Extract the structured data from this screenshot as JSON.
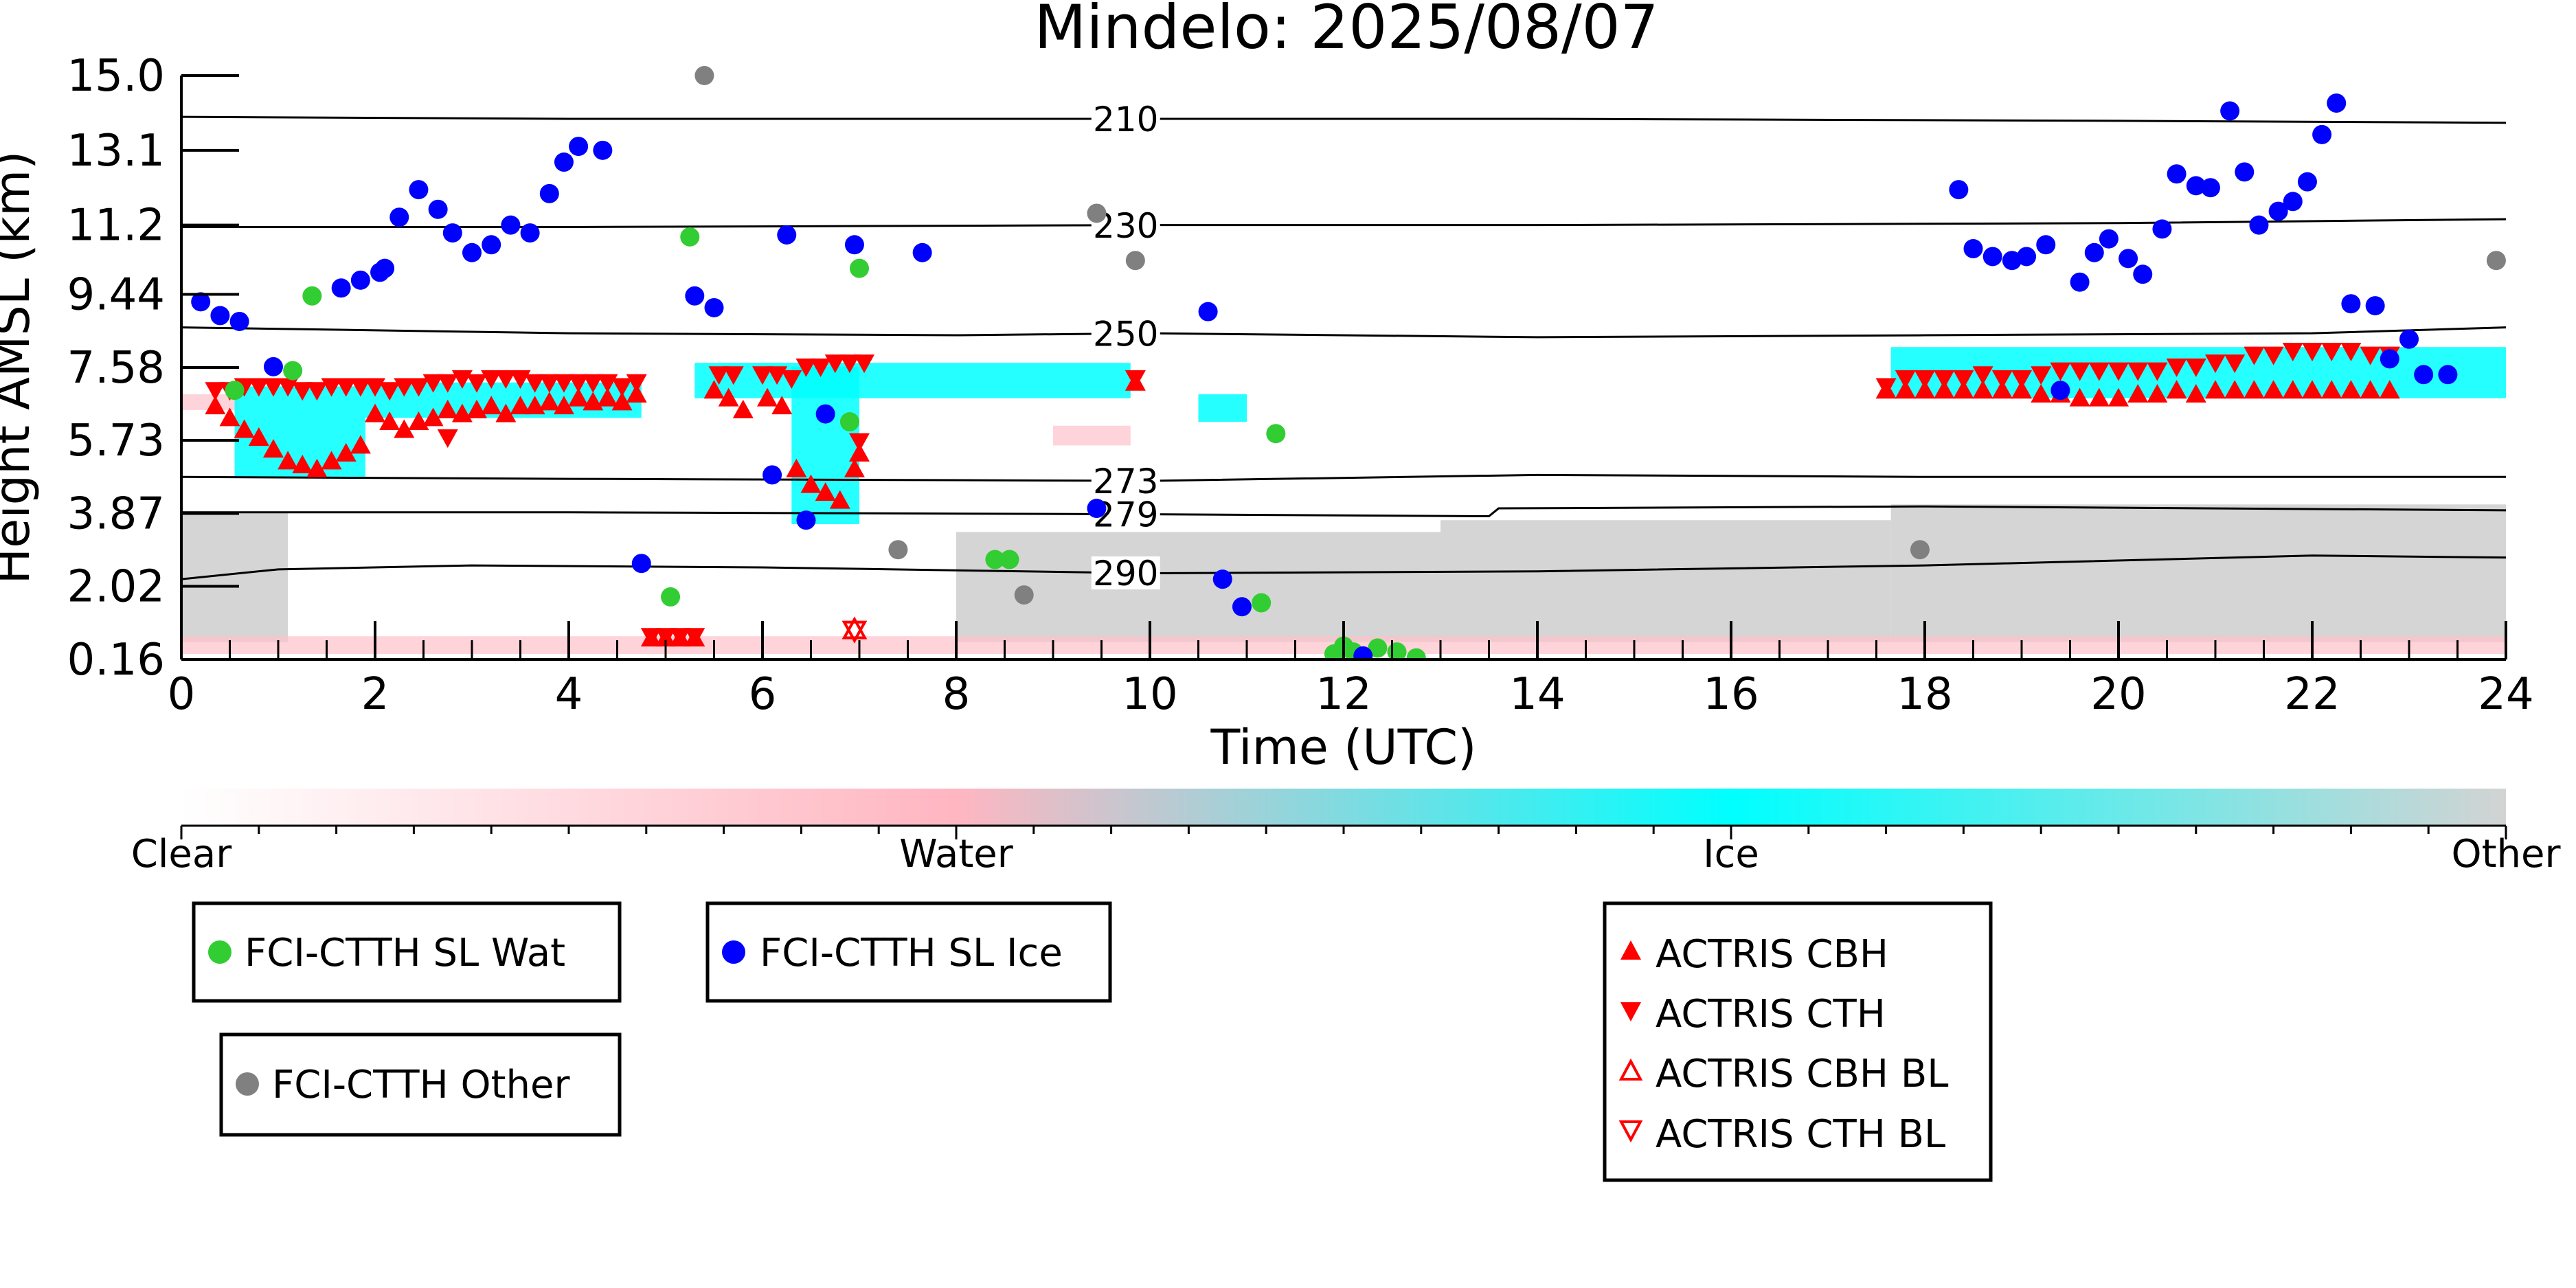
{
  "chart_data": {
    "type": "scatter",
    "title": "Mindelo: 2025/08/07",
    "xlabel": "Time (UTC)",
    "ylabel": "Height AMSL (km)",
    "xlim": [
      0,
      24
    ],
    "ylim": [
      0.16,
      15.0
    ],
    "x_ticks": [
      0,
      2,
      4,
      6,
      8,
      10,
      12,
      14,
      16,
      18,
      20,
      22,
      24
    ],
    "x_tick_labels": [
      "0",
      "2",
      "4",
      "6",
      "8",
      "10",
      "12",
      "14",
      "16",
      "18",
      "20",
      "22",
      "24"
    ],
    "y_ticks": [
      0.16,
      2.02,
      3.87,
      5.73,
      7.58,
      9.44,
      11.2,
      13.1,
      15.0
    ],
    "y_tick_labels": [
      "0.16",
      "2.02",
      "3.87",
      "5.73",
      "7.58",
      "9.44",
      "11.2",
      "13.1",
      "15.0"
    ],
    "grid": false,
    "colorbar": {
      "labels": [
        "Clear",
        "Water",
        "Ice",
        "Other"
      ],
      "colors": [
        "#ffffff",
        "#ffb6c1",
        "#00ffff",
        "#d3d3d3"
      ]
    },
    "colors": {
      "water": "#32cd32",
      "ice": "#0000ff",
      "other": "#808080",
      "actris": "#ff0000",
      "cloud_ice": "#00ffff",
      "cloud_water": "#ffc0cb",
      "cloud_other": "#d3d3d3"
    },
    "isotherms": [
      {
        "label": "210",
        "x": [
          0,
          4,
          10,
          14,
          20,
          24
        ],
        "y": [
          13.95,
          13.9,
          13.9,
          13.9,
          13.85,
          13.8
        ]
      },
      {
        "label": "230",
        "x": [
          0,
          4,
          10,
          14,
          20,
          24
        ],
        "y": [
          11.15,
          11.15,
          11.2,
          11.2,
          11.25,
          11.35
        ]
      },
      {
        "label": "250",
        "x": [
          0,
          4,
          8,
          10,
          14,
          18,
          22,
          24
        ],
        "y": [
          8.6,
          8.45,
          8.4,
          8.45,
          8.35,
          8.4,
          8.45,
          8.6
        ]
      },
      {
        "label": "273",
        "x": [
          0,
          4,
          10,
          14,
          18,
          24
        ],
        "y": [
          4.8,
          4.75,
          4.7,
          4.85,
          4.8,
          4.8
        ]
      },
      {
        "label": "279",
        "x": [
          0,
          4,
          10,
          13.5,
          13.6,
          18,
          24
        ],
        "y": [
          3.9,
          3.9,
          3.85,
          3.8,
          4.0,
          4.05,
          3.95
        ]
      },
      {
        "label": "290",
        "x": [
          0,
          1,
          3,
          6,
          10,
          14,
          18,
          22,
          24
        ],
        "y": [
          2.2,
          2.45,
          2.55,
          2.5,
          2.35,
          2.4,
          2.55,
          2.8,
          2.75
        ]
      }
    ],
    "isotherm_label_x": 9.75,
    "series": [
      {
        "name": "FCI-CTTH SL Wat",
        "marker": "circle",
        "color": "#32cd32",
        "x": [
          0.55,
          1.15,
          1.35,
          5.05,
          5.25,
          6.9,
          7.0,
          8.4,
          8.55,
          11.15,
          11.3,
          11.9,
          12.0,
          12.1,
          12.35,
          12.55,
          12.75
        ],
        "y": [
          7.0,
          7.5,
          9.4,
          1.75,
          10.9,
          6.2,
          10.1,
          2.7,
          2.7,
          1.6,
          5.9,
          0.3,
          0.5,
          0.35,
          0.45,
          0.35,
          0.2
        ]
      },
      {
        "name": "FCI-CTTH SL Ice",
        "marker": "circle",
        "color": "#0000ff",
        "x": [
          0.2,
          0.4,
          0.6,
          0.95,
          1.65,
          1.85,
          2.05,
          2.1,
          2.25,
          2.45,
          2.65,
          2.8,
          3.0,
          3.2,
          3.4,
          3.6,
          3.8,
          3.95,
          4.1,
          4.35,
          4.75,
          5.3,
          5.5,
          6.1,
          6.25,
          6.45,
          6.65,
          6.95,
          7.65,
          9.45,
          10.6,
          10.75,
          10.95,
          12.2,
          18.35,
          18.5,
          18.7,
          18.9,
          19.05,
          19.25,
          19.4,
          19.6,
          19.75,
          19.9,
          20.1,
          20.25,
          20.45,
          20.6,
          20.8,
          20.95,
          21.15,
          21.3,
          21.45,
          21.65,
          21.8,
          21.95,
          22.1,
          22.25,
          22.4,
          22.65,
          22.8,
          23.0,
          23.15,
          23.4
        ],
        "y": [
          9.25,
          8.9,
          8.75,
          7.6,
          9.6,
          9.8,
          10.0,
          10.1,
          11.4,
          12.1,
          11.6,
          11.0,
          10.5,
          10.7,
          11.2,
          11.0,
          12.0,
          12.8,
          13.2,
          13.1,
          2.6,
          9.4,
          9.1,
          4.85,
          10.95,
          3.7,
          6.4,
          10.7,
          10.5,
          4.0,
          9.0,
          2.2,
          1.5,
          0.25,
          12.1,
          10.6,
          10.4,
          10.3,
          10.4,
          10.7,
          7.0,
          9.75,
          10.5,
          10.85,
          10.35,
          9.95,
          11.1,
          12.5,
          12.2,
          12.15,
          14.1,
          12.55,
          11.2,
          11.55,
          11.8,
          12.3,
          13.5,
          14.3,
          9.2,
          9.15,
          7.8,
          8.3,
          7.4,
          7.4
        ],
        "x_extra": []
      },
      {
        "name": "FCI-CTTH Other",
        "marker": "circle",
        "color": "#808080",
        "x": [
          5.4,
          7.4,
          8.7,
          9.45,
          9.85,
          17.95,
          23.9
        ],
        "y": [
          15.0,
          2.95,
          1.8,
          11.5,
          10.3,
          2.95,
          10.3
        ]
      },
      {
        "name": "ACTRIS CBH",
        "marker": "triangle-up",
        "color": "#ff0000",
        "x": [
          0.35,
          0.5,
          0.65,
          0.8,
          0.95,
          1.1,
          1.25,
          1.4,
          1.55,
          1.7,
          1.85,
          2.0,
          2.15,
          2.3,
          2.45,
          2.6,
          2.75,
          2.9,
          3.05,
          3.2,
          3.35,
          3.5,
          3.65,
          3.8,
          3.95,
          4.1,
          4.25,
          4.4,
          4.55,
          4.7,
          4.85,
          5.0,
          5.15,
          5.3,
          5.5,
          5.65,
          5.8,
          6.05,
          6.2,
          6.35,
          6.5,
          6.65,
          6.8,
          6.95,
          7.0,
          9.85,
          17.6,
          17.8,
          18.0,
          18.2,
          18.4,
          18.6,
          18.8,
          19.0,
          19.2,
          19.4,
          19.6,
          19.8,
          20.0,
          20.2,
          20.4,
          20.6,
          20.8,
          21.0,
          21.2,
          21.4,
          21.6,
          21.8,
          22.0,
          22.2,
          22.4,
          22.6,
          22.8
        ],
        "y": [
          6.6,
          6.3,
          6.0,
          5.8,
          5.5,
          5.2,
          5.1,
          5.0,
          5.2,
          5.4,
          5.6,
          6.4,
          6.2,
          6.0,
          6.2,
          6.3,
          6.5,
          6.4,
          6.5,
          6.6,
          6.4,
          6.6,
          6.6,
          6.7,
          6.6,
          6.8,
          6.7,
          6.8,
          6.7,
          6.9,
          0.7,
          0.7,
          0.7,
          0.7,
          7.0,
          6.8,
          6.5,
          6.8,
          6.6,
          5.0,
          4.6,
          4.4,
          4.2,
          5.0,
          5.4,
          7.2,
          7.0,
          7.0,
          7.0,
          7.0,
          7.0,
          7.0,
          7.0,
          7.0,
          6.9,
          6.9,
          6.8,
          6.8,
          6.8,
          6.9,
          6.9,
          7.0,
          6.9,
          7.0,
          7.0,
          7.0,
          7.0,
          7.0,
          7.0,
          7.0,
          7.0,
          7.0,
          7.0
        ],
        "y_extra": []
      },
      {
        "name": "ACTRIS CTH",
        "marker": "triangle-down",
        "color": "#ff0000",
        "x": [
          0.35,
          0.5,
          0.65,
          0.8,
          0.95,
          1.1,
          1.25,
          1.4,
          1.55,
          1.7,
          1.85,
          2.0,
          2.15,
          2.3,
          2.45,
          2.6,
          2.75,
          2.9,
          3.05,
          3.2,
          3.35,
          3.5,
          3.65,
          3.8,
          3.95,
          4.1,
          4.25,
          4.4,
          4.55,
          4.7,
          4.85,
          5.0,
          5.15,
          5.3,
          5.55,
          5.7,
          6.0,
          6.15,
          6.3,
          6.45,
          6.6,
          6.75,
          6.9,
          7.05,
          7.0,
          2.75,
          9.85,
          17.6,
          17.8,
          18.0,
          18.2,
          18.4,
          18.6,
          18.8,
          19.0,
          19.2,
          19.4,
          19.6,
          19.8,
          20.0,
          20.2,
          20.4,
          20.6,
          20.8,
          21.0,
          21.2,
          21.4,
          21.6,
          21.8,
          22.0,
          22.2,
          22.4,
          22.6,
          22.8
        ],
        "y": [
          7.0,
          7.0,
          7.1,
          7.1,
          7.1,
          7.1,
          7.0,
          7.0,
          7.1,
          7.1,
          7.1,
          7.1,
          7.0,
          7.1,
          7.1,
          7.2,
          7.2,
          7.3,
          7.2,
          7.3,
          7.3,
          7.3,
          7.2,
          7.2,
          7.2,
          7.2,
          7.2,
          7.2,
          7.1,
          7.2,
          0.75,
          0.75,
          0.75,
          0.75,
          7.4,
          7.4,
          7.4,
          7.4,
          7.3,
          7.6,
          7.6,
          7.7,
          7.7,
          7.7,
          5.7,
          5.8,
          7.3,
          7.1,
          7.3,
          7.3,
          7.3,
          7.3,
          7.4,
          7.3,
          7.3,
          7.4,
          7.5,
          7.5,
          7.5,
          7.5,
          7.5,
          7.5,
          7.6,
          7.6,
          7.7,
          7.7,
          7.9,
          7.9,
          8.0,
          8.0,
          8.0,
          8.0,
          7.9,
          7.9
        ]
      },
      {
        "name": "ACTRIS CBH BL",
        "marker": "triangle-up-open",
        "color": "#ff0000",
        "x": [
          6.95
        ],
        "y": [
          0.92
        ]
      },
      {
        "name": "ACTRIS CTH BL",
        "marker": "triangle-down-open",
        "color": "#ff0000",
        "x": [
          6.95
        ],
        "y": [
          0.9
        ]
      }
    ],
    "cloud_mask_regions": [
      {
        "class": "ice",
        "x0": 0.55,
        "x1": 1.9,
        "y0": 4.8,
        "y1": 7.1
      },
      {
        "class": "ice",
        "x0": 1.9,
        "x1": 4.75,
        "y0": 6.3,
        "y1": 7.2
      },
      {
        "class": "ice",
        "x0": 5.3,
        "x1": 9.8,
        "y0": 6.8,
        "y1": 7.7
      },
      {
        "class": "ice",
        "x0": 6.3,
        "x1": 7.0,
        "y0": 3.6,
        "y1": 7.6
      },
      {
        "class": "ice",
        "x0": 10.5,
        "x1": 11.0,
        "y0": 6.2,
        "y1": 6.9
      },
      {
        "class": "ice",
        "x0": 17.65,
        "x1": 24.0,
        "y0": 6.8,
        "y1": 8.1
      },
      {
        "class": "water",
        "x0": 0.0,
        "x1": 0.6,
        "y0": 6.5,
        "y1": 6.9
      },
      {
        "class": "water",
        "x0": 9.0,
        "x1": 9.8,
        "y0": 5.6,
        "y1": 6.1
      },
      {
        "class": "water",
        "x0": 0.0,
        "x1": 24.0,
        "y0": 0.3,
        "y1": 0.75
      },
      {
        "class": "other",
        "x0": 0.0,
        "x1": 1.1,
        "y0": 0.6,
        "y1": 3.9
      },
      {
        "class": "other",
        "x0": 8.0,
        "x1": 13.0,
        "y0": 0.6,
        "y1": 3.4
      },
      {
        "class": "other",
        "x0": 13.0,
        "x1": 17.65,
        "y0": 0.6,
        "y1": 3.7
      },
      {
        "class": "other",
        "x0": 17.65,
        "x1": 24.0,
        "y0": 0.6,
        "y1": 4.1
      }
    ],
    "legends": [
      {
        "entries": [
          "FCI-CTTH SL Wat"
        ]
      },
      {
        "entries": [
          "FCI-CTTH SL Ice"
        ]
      },
      {
        "entries": [
          "FCI-CTTH Other"
        ]
      },
      {
        "entries": [
          "ACTRIS CBH",
          "ACTRIS CTH",
          "ACTRIS CBH BL",
          "ACTRIS CTH BL"
        ]
      }
    ]
  }
}
